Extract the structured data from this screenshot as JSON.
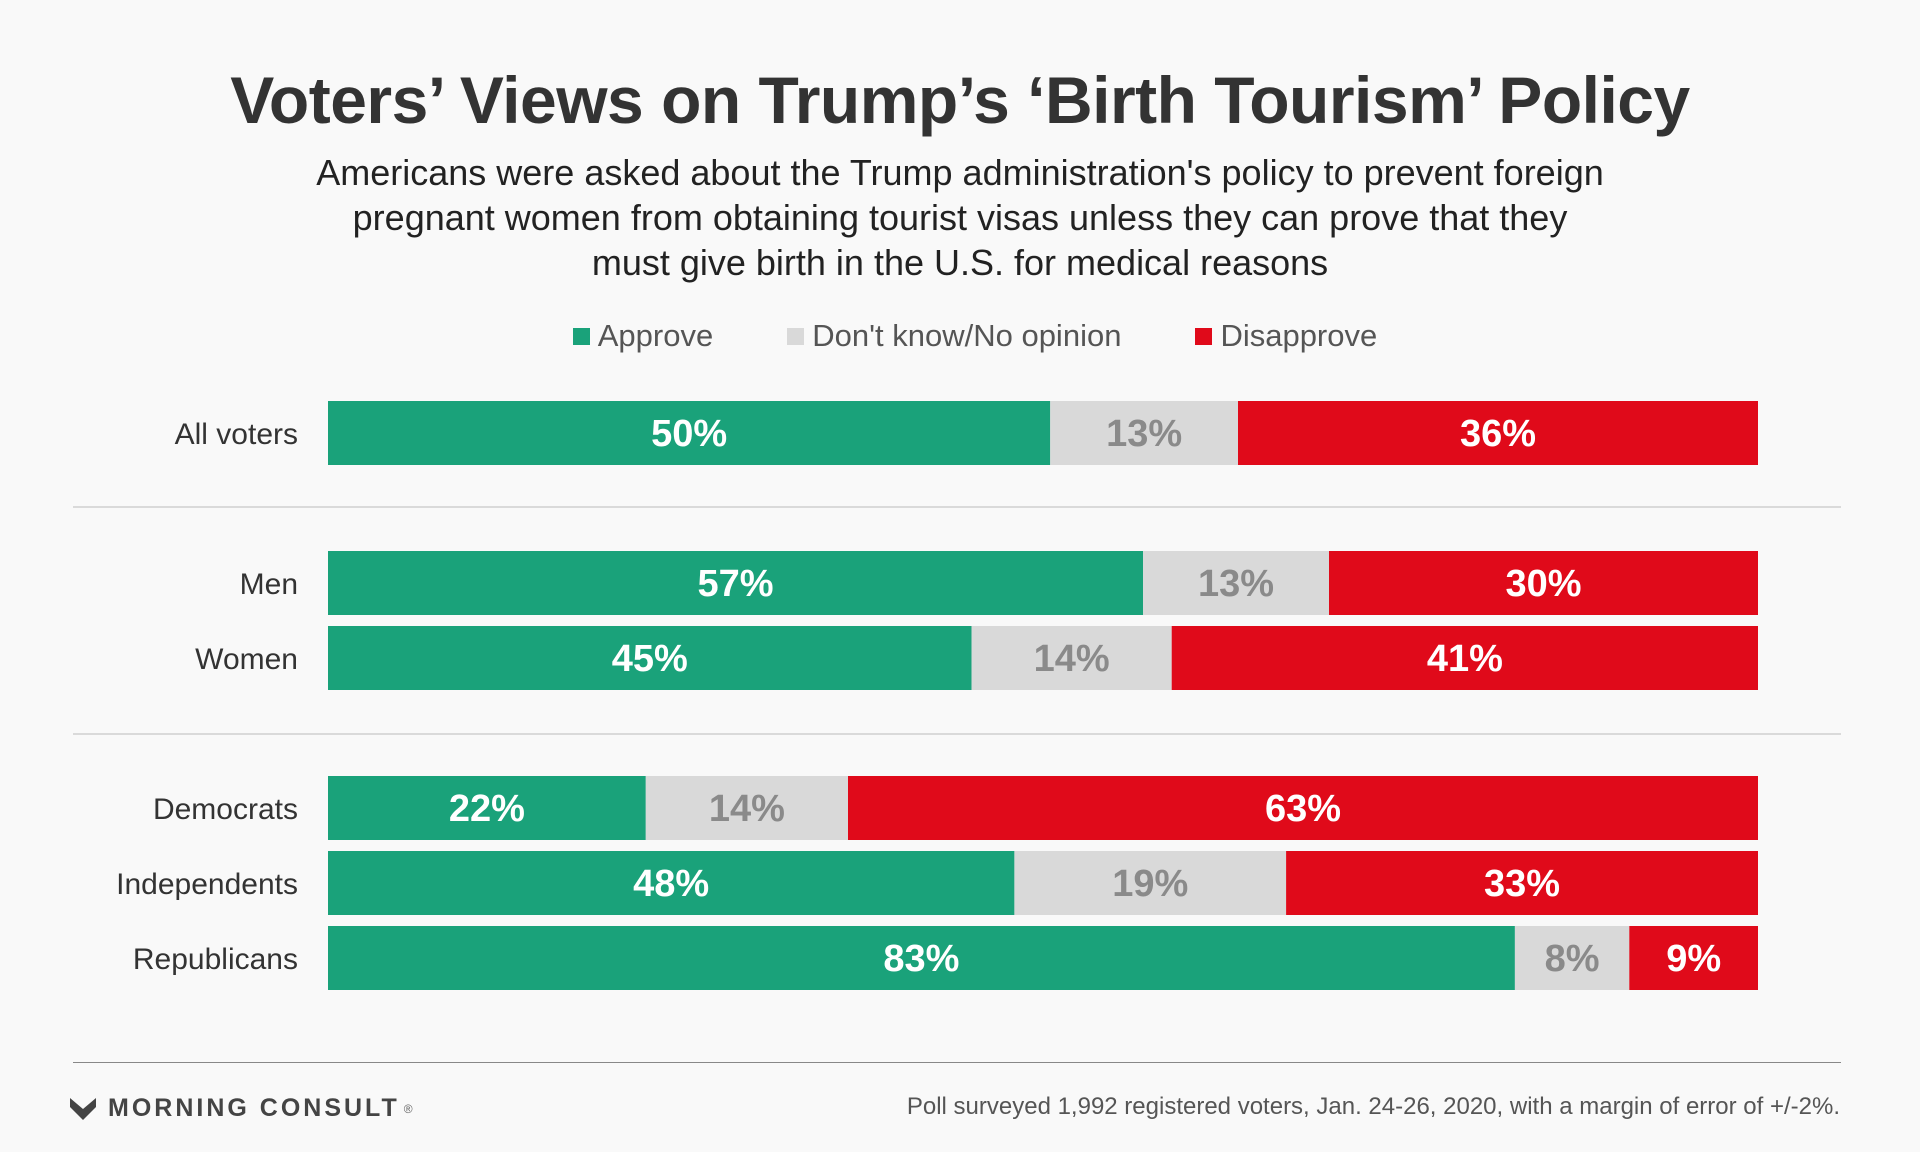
{
  "chart_data": {
    "type": "bar",
    "orientation": "horizontal",
    "stacked": true,
    "title": "Voters’ Views on Trump’s ‘Birth Tourism’ Policy",
    "subtitle": "Americans were asked about the Trump administration's policy to prevent foreign pregnant women from obtaining tourist visas unless they can prove that they must give birth in the U.S. for medical reasons",
    "categories": [
      "All voters",
      "Men",
      "Women",
      "Democrats",
      "Independents",
      "Republicans"
    ],
    "groups": [
      [
        "All voters"
      ],
      [
        "Men",
        "Women"
      ],
      [
        "Democrats",
        "Independents",
        "Republicans"
      ]
    ],
    "series": [
      {
        "name": "Approve",
        "color": "#1aa27a",
        "values": [
          50,
          57,
          45,
          22,
          48,
          83
        ],
        "labels": [
          "50%",
          "57%",
          "45%",
          "22%",
          "48%",
          "83%"
        ],
        "label_color": "#ffffff"
      },
      {
        "name": "Don't know/No opinion",
        "color": "#d9d9d9",
        "values": [
          13,
          13,
          14,
          14,
          19,
          8
        ],
        "labels": [
          "13%",
          "13%",
          "14%",
          "14%",
          "19%",
          "8%"
        ],
        "label_color": "#8a8a8a"
      },
      {
        "name": "Disapprove",
        "color": "#e00a1a",
        "values": [
          36,
          30,
          41,
          63,
          33,
          9
        ],
        "labels": [
          "36%",
          "30%",
          "41%",
          "63%",
          "33%",
          "9%"
        ],
        "label_color": "#ffffff"
      }
    ],
    "legend_position": "top-center",
    "grid": false
  },
  "footer": {
    "brand": "MORNING CONSULT",
    "brand_mark": "®",
    "note": "Poll surveyed 1,992 registered voters, Jan. 24-26, 2020, with a margin of error of +/-2%."
  }
}
